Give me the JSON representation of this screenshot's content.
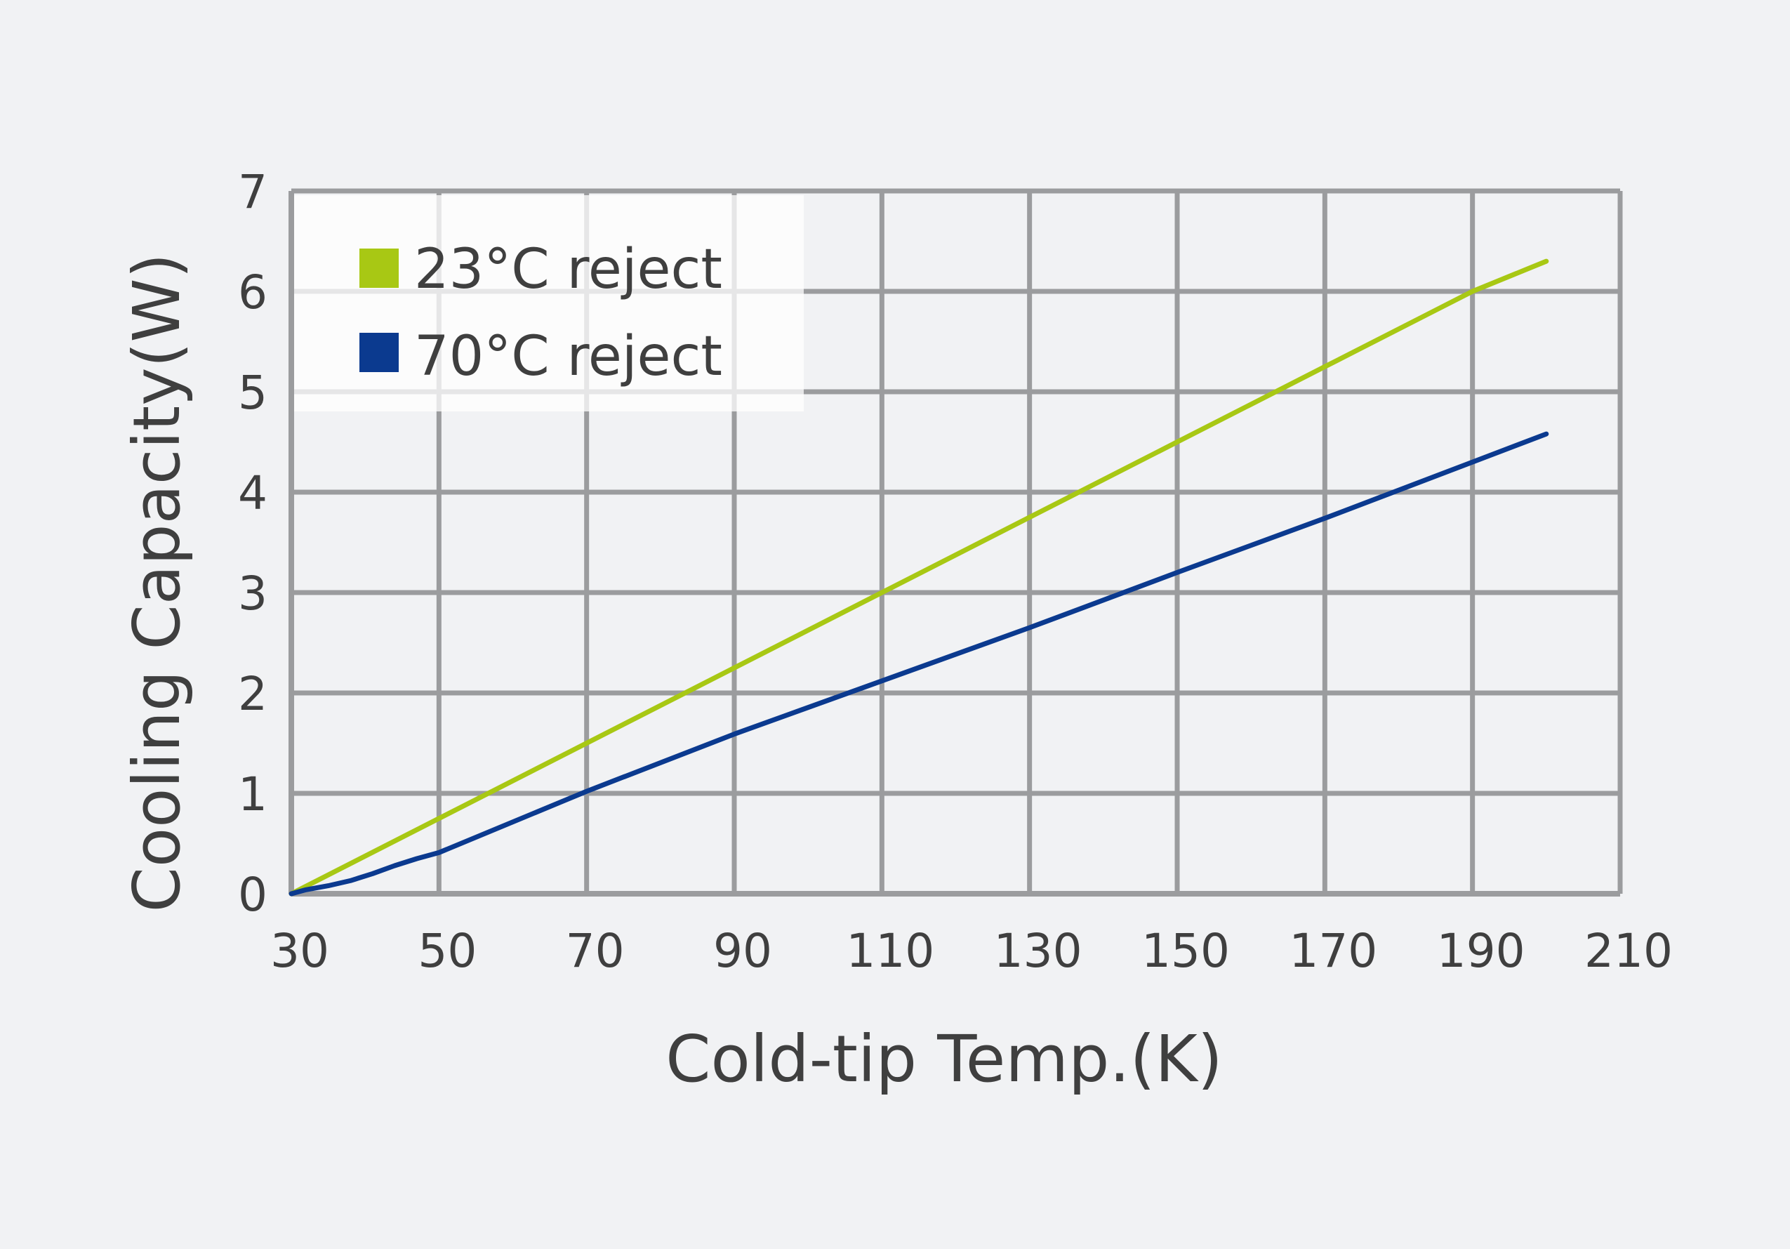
{
  "chart_data": {
    "type": "line",
    "title": "",
    "xlabel": "Cold-tip Temp.(K)",
    "ylabel": "Cooling  Capacity(W)",
    "xlim": [
      30,
      210
    ],
    "ylim": [
      0,
      7
    ],
    "x_ticks": [
      30,
      50,
      70,
      90,
      110,
      130,
      150,
      170,
      190,
      210
    ],
    "y_ticks": [
      0,
      1,
      2,
      3,
      4,
      5,
      6,
      7
    ],
    "grid": true,
    "legend_position": "top-left",
    "series": [
      {
        "name": "23°C reject",
        "color": "#a8c814",
        "x": [
          30,
          50,
          70,
          90,
          110,
          130,
          150,
          170,
          190,
          200
        ],
        "y": [
          0,
          0.75,
          1.5,
          2.25,
          3.0,
          3.75,
          4.5,
          5.25,
          6.0,
          6.3
        ]
      },
      {
        "name": "70°C reject",
        "color": "#0b3a8f",
        "x": [
          30,
          32,
          35,
          38,
          41,
          44,
          47,
          50,
          70,
          90,
          110,
          130,
          150,
          170,
          190,
          200
        ],
        "y": [
          0,
          0.04,
          0.08,
          0.13,
          0.2,
          0.28,
          0.35,
          0.41,
          1.02,
          1.59,
          2.12,
          2.65,
          3.2,
          3.74,
          4.3,
          4.58
        ]
      }
    ]
  }
}
